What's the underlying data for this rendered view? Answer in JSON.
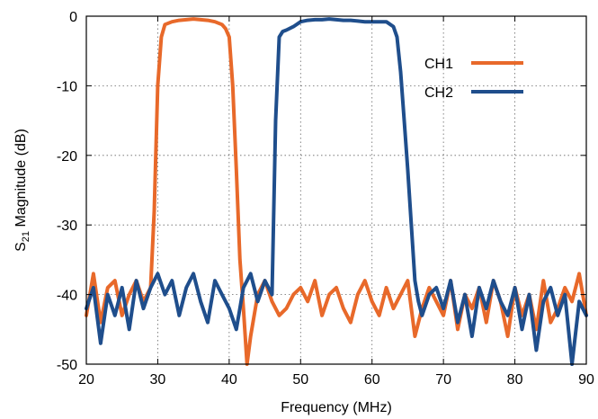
{
  "chart_data": {
    "type": "line",
    "xlabel": "Frequency (MHz)",
    "ylabel": "S21 Magnitude (dB)",
    "ylabel_main": "S",
    "ylabel_sub": "21",
    "ylabel_rest": " Magnitude (dB)",
    "xlim": [
      20,
      90
    ],
    "ylim": [
      -50,
      0
    ],
    "xticks": [
      20,
      30,
      40,
      50,
      60,
      70,
      80,
      90
    ],
    "yticks": [
      0,
      -10,
      -20,
      -30,
      -40,
      -50
    ],
    "grid": true,
    "legend_position": "top-right",
    "series": [
      {
        "name": "CH1",
        "color": "#E8692A",
        "x": [
          20,
          21,
          22,
          23,
          24,
          25,
          26,
          27,
          28,
          29,
          29.5,
          30,
          30.5,
          31,
          32,
          33,
          34,
          35,
          36,
          37,
          38,
          39,
          39.5,
          40,
          40.5,
          41,
          41.5,
          42,
          42.5,
          43,
          44,
          45,
          46,
          47,
          48,
          49,
          50,
          51,
          52,
          53,
          54,
          55,
          56,
          57,
          58,
          59,
          60,
          61,
          62,
          63,
          64,
          65,
          66,
          67,
          68,
          69,
          70,
          71,
          72,
          73,
          74,
          75,
          76,
          77,
          78,
          79,
          80,
          81,
          82,
          83,
          84,
          85,
          86,
          87,
          88,
          89,
          90
        ],
        "values": [
          -43,
          -37,
          -44,
          -39,
          -38,
          -43,
          -40,
          -38,
          -41,
          -39,
          -28,
          -10,
          -3,
          -1.2,
          -0.8,
          -0.6,
          -0.5,
          -0.4,
          -0.5,
          -0.6,
          -0.8,
          -1.2,
          -1.8,
          -3,
          -10,
          -22,
          -35,
          -42,
          -50,
          -46,
          -40,
          -38,
          -41,
          -43,
          -42,
          -40,
          -39,
          -41,
          -38,
          -43,
          -40,
          -39,
          -42,
          -44,
          -40,
          -38,
          -41,
          -43,
          -39,
          -42,
          -40,
          -38,
          -46,
          -42,
          -39,
          -41,
          -43,
          -38,
          -45,
          -40,
          -42,
          -39,
          -44,
          -38,
          -41,
          -46,
          -39,
          -43,
          -40,
          -45,
          -38,
          -44,
          -42,
          -39,
          -41,
          -37,
          -43
        ]
      },
      {
        "name": "CH2",
        "color": "#1F4E8C",
        "x": [
          20,
          21,
          22,
          23,
          24,
          25,
          26,
          27,
          28,
          29,
          30,
          31,
          32,
          33,
          34,
          35,
          36,
          37,
          38,
          39,
          40,
          41,
          42,
          43,
          44,
          45,
          46,
          46.5,
          47,
          47.5,
          48,
          49,
          50,
          51,
          52,
          53,
          54,
          55,
          56,
          57,
          58,
          59,
          60,
          61,
          62,
          63,
          63.5,
          64,
          64.5,
          65,
          65.5,
          66,
          66.5,
          67,
          68,
          69,
          70,
          71,
          72,
          73,
          74,
          75,
          76,
          77,
          78,
          79,
          80,
          81,
          82,
          83,
          84,
          85,
          86,
          87,
          88,
          89,
          90
        ],
        "values": [
          -42,
          -39,
          -47,
          -40,
          -43,
          -39,
          -45,
          -38,
          -42,
          -39,
          -37,
          -40,
          -38,
          -43,
          -39,
          -37,
          -41,
          -44,
          -38,
          -40,
          -42,
          -45,
          -39,
          -37,
          -41,
          -38,
          -40,
          -15,
          -3,
          -2.2,
          -2,
          -1.5,
          -0.8,
          -0.6,
          -0.5,
          -0.5,
          -0.4,
          -0.5,
          -0.6,
          -0.6,
          -0.7,
          -0.8,
          -0.8,
          -0.8,
          -0.8,
          -1.5,
          -3,
          -8,
          -15,
          -22,
          -30,
          -38,
          -41,
          -43,
          -40,
          -39,
          -42,
          -38,
          -44,
          -40,
          -46,
          -39,
          -42,
          -38,
          -41,
          -43,
          -39,
          -45,
          -40,
          -48,
          -41,
          -39,
          -43,
          -40,
          -50,
          -41,
          -43
        ]
      }
    ]
  }
}
